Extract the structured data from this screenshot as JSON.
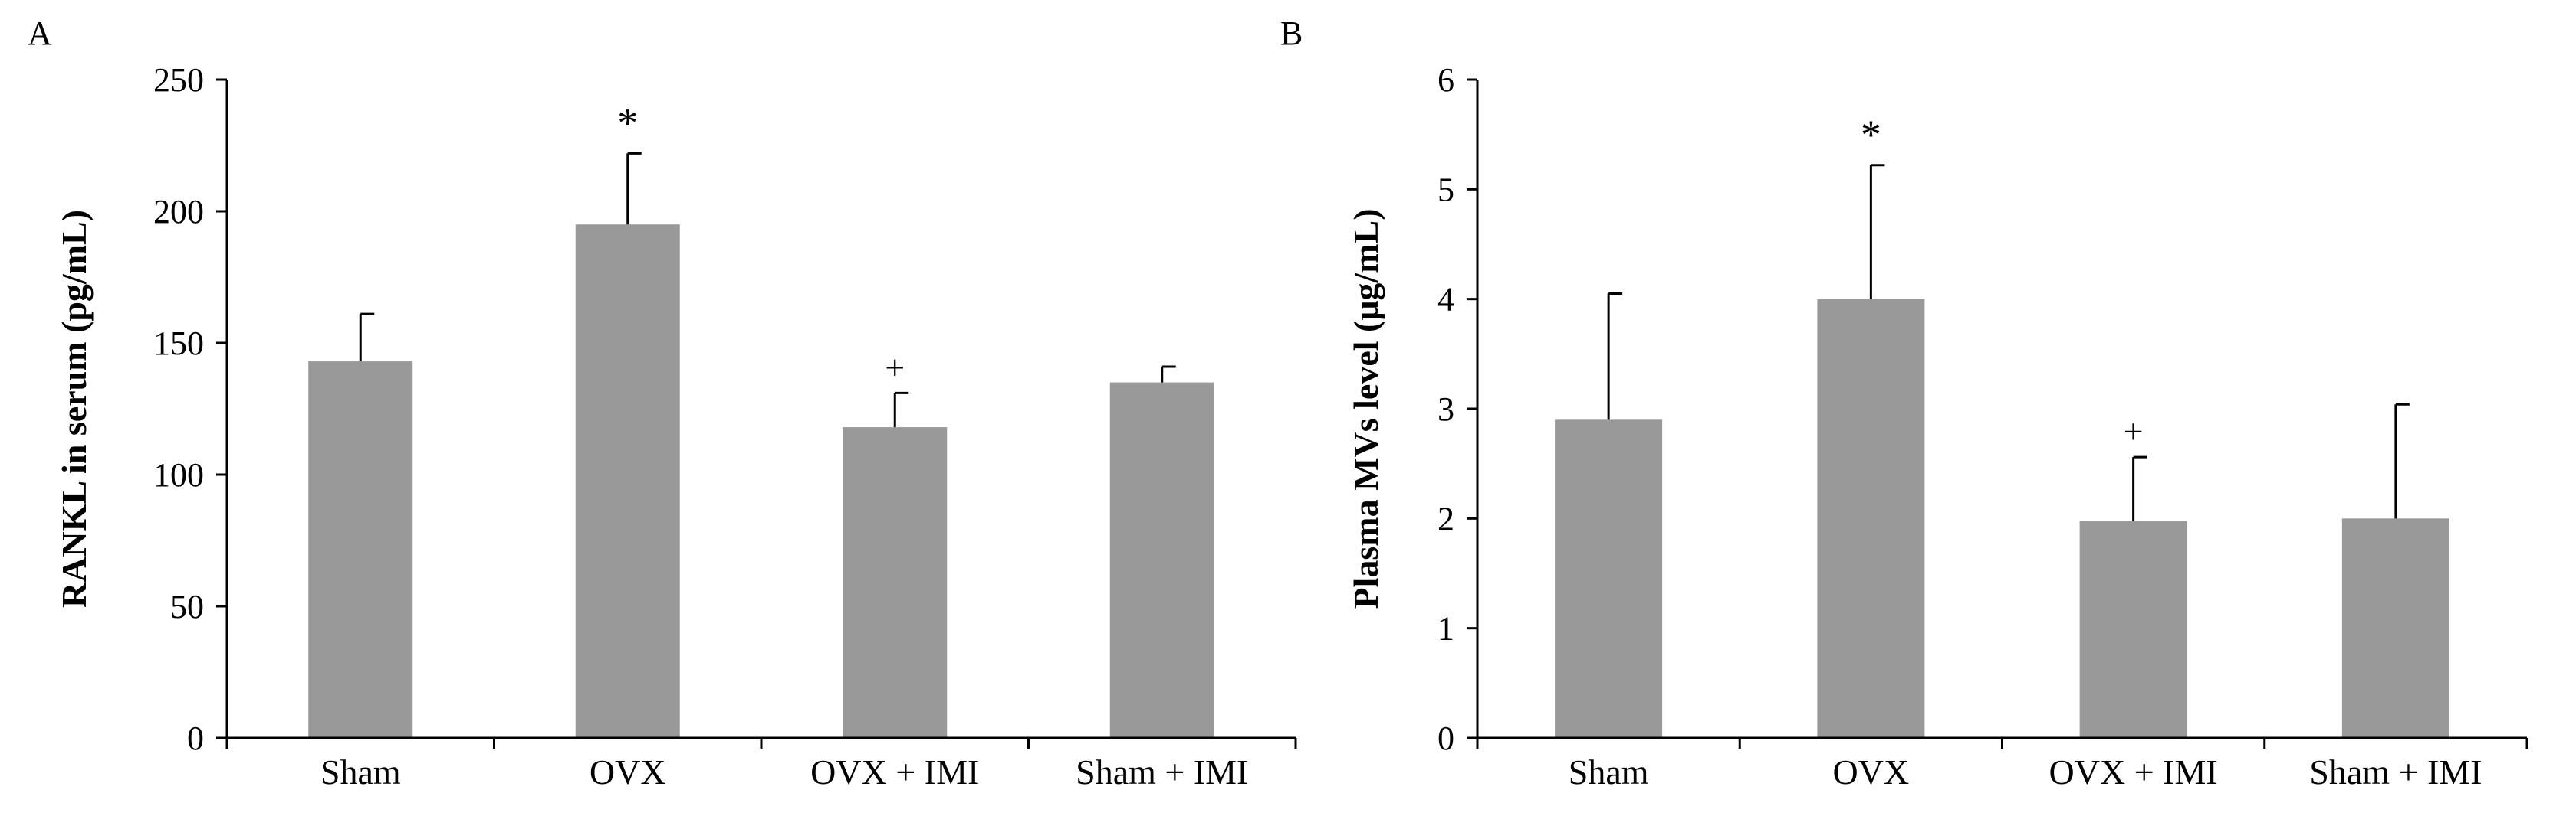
{
  "colors": {
    "bar": "#999999",
    "axis": "#000000",
    "text": "#000000",
    "background": "#ffffff"
  },
  "chart_data": [
    {
      "type": "bar",
      "panel_label": "A",
      "categories": [
        "Sham",
        "OVX",
        "OVX + IMI",
        "Sham + IMI"
      ],
      "values": [
        143,
        195,
        118,
        135
      ],
      "error_upper": [
        161,
        222,
        131,
        141
      ],
      "annotations": [
        "",
        "*",
        "+",
        ""
      ],
      "ylabel": "RANKL in serum (pg/mL)",
      "xlabel": "",
      "title": "",
      "ylim": [
        0,
        250
      ],
      "yticks": [
        0,
        50,
        100,
        150,
        200,
        250
      ],
      "ytick_labels": [
        "0",
        "50",
        "100",
        "150",
        "200",
        "250"
      ],
      "grid": false,
      "legend": "none"
    },
    {
      "type": "bar",
      "panel_label": "B",
      "categories": [
        "Sham",
        "OVX",
        "OVX + IMI",
        "Sham + IMI"
      ],
      "values": [
        2.9,
        4.0,
        1.98,
        2.0
      ],
      "error_upper": [
        4.05,
        5.22,
        2.56,
        3.04
      ],
      "annotations": [
        "",
        "*",
        "+",
        ""
      ],
      "ylabel": "Plasma MVs level (μg/mL)",
      "xlabel": "",
      "title": "",
      "ylim": [
        0,
        6
      ],
      "yticks": [
        0,
        1,
        2,
        3,
        4,
        5,
        6
      ],
      "ytick_labels": [
        "0",
        "1",
        "2",
        "3",
        "4",
        "5",
        "6"
      ],
      "grid": false,
      "legend": "none"
    }
  ]
}
